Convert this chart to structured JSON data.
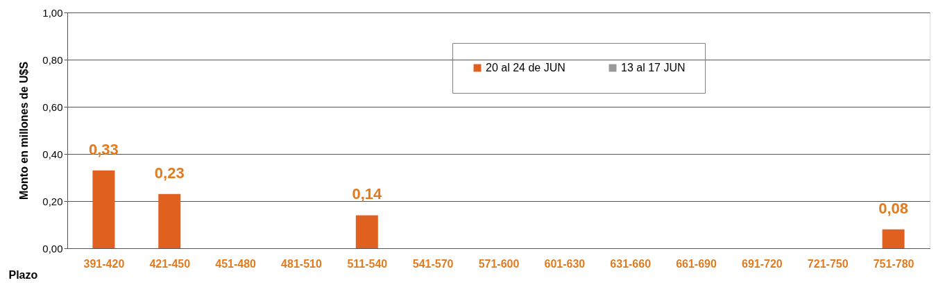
{
  "chart_data": {
    "type": "bar",
    "xlabel": "Plazo",
    "ylabel": "Monto en  millones de U$S",
    "categories": [
      "391-420",
      "421-450",
      "451-480",
      "481-510",
      "511-540",
      "541-570",
      "571-600",
      "601-630",
      "631-660",
      "661-690",
      "691-720",
      "721-750",
      "751-780"
    ],
    "series": [
      {
        "name": "20 al 24 de JUN",
        "color": "#e0601f",
        "values": [
          0.33,
          0.23,
          null,
          null,
          0.14,
          null,
          null,
          null,
          null,
          null,
          null,
          null,
          0.08
        ],
        "value_labels": [
          "0,33",
          "0,23",
          null,
          null,
          "0,14",
          null,
          null,
          null,
          null,
          null,
          null,
          null,
          "0,08"
        ]
      },
      {
        "name": "13 al 17 JUN",
        "color": "#9a9a9a",
        "values": [
          null,
          null,
          null,
          null,
          null,
          null,
          null,
          null,
          null,
          null,
          null,
          null,
          null
        ]
      }
    ],
    "ylim": [
      0,
      1
    ],
    "yticks": [
      {
        "value": 0,
        "label": "0,00"
      },
      {
        "value": 0.2,
        "label": "0,20"
      },
      {
        "value": 0.4,
        "label": "0,40"
      },
      {
        "value": 0.6,
        "label": "0,60"
      },
      {
        "value": 0.8,
        "label": "0,80"
      },
      {
        "value": 1,
        "label": "1,00"
      }
    ],
    "grid": "y",
    "legend": "top right"
  }
}
